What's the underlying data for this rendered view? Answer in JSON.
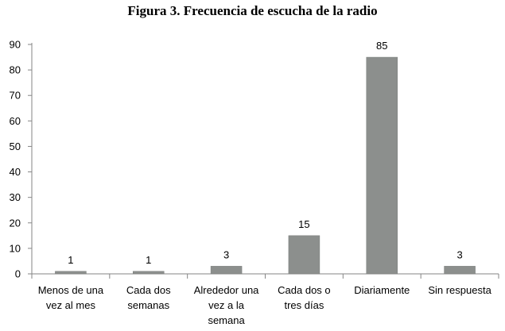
{
  "chart_data": {
    "type": "bar",
    "title": "Figura 3. Frecuencia de escucha de la radio",
    "categories": [
      [
        "Menos de una",
        "vez al mes"
      ],
      [
        "Cada dos",
        "semanas"
      ],
      [
        "Alrededor una",
        "vez a la",
        "semana"
      ],
      [
        "Cada dos o",
        "tres días"
      ],
      [
        "Diariamente"
      ],
      [
        "Sin respuesta"
      ]
    ],
    "values": [
      1,
      1,
      3,
      15,
      85,
      3
    ],
    "data_labels": [
      "1",
      "1",
      "3",
      "15",
      "85",
      "3"
    ],
    "yticks": [
      0,
      10,
      20,
      30,
      40,
      50,
      60,
      70,
      80,
      90
    ],
    "ylim": [
      0,
      90
    ],
    "xlabel": "",
    "ylabel": "",
    "grid": false,
    "legend": "none",
    "bar_color": "#8c8f8d"
  }
}
